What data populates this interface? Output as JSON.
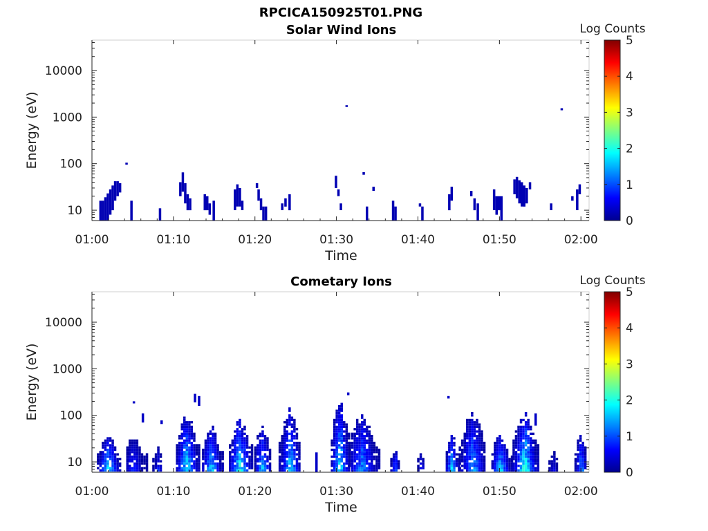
{
  "figure": {
    "title": "RPCICA150925T01.PNG"
  },
  "colormap": [
    "#00008f",
    "#0000ff",
    "#0080ff",
    "#00ffff",
    "#80ff80",
    "#ffff00",
    "#ff8000",
    "#ff0000",
    "#800000"
  ],
  "chart_data": [
    {
      "type": "heatmap",
      "title": "Solar Wind Ions",
      "xlabel": "Time",
      "ylabel": "Energy (eV)",
      "xlim": [
        "01:00",
        "02:01"
      ],
      "xticks": [
        "01:00",
        "01:10",
        "01:20",
        "01:30",
        "01:40",
        "01:50",
        "02:00"
      ],
      "ylim": [
        6,
        45000
      ],
      "yscale": "log",
      "yticks": [
        10,
        100,
        1000,
        10000
      ],
      "yticklabels": [
        "10",
        "100",
        "1000",
        "10000"
      ],
      "colorbar": {
        "label": "Log Counts",
        "range": [
          0,
          5
        ],
        "ticks": [
          "0",
          "1",
          "2",
          "3",
          "4",
          "5"
        ]
      },
      "cells": [
        {
          "t": 0.9,
          "e0": 6,
          "e1": 16,
          "v": 0.2
        },
        {
          "t": 1.2,
          "e0": 6,
          "e1": 16,
          "v": 0.2
        },
        {
          "t": 1.5,
          "e0": 6,
          "e1": 19,
          "v": 0.2
        },
        {
          "t": 1.8,
          "e0": 6,
          "e1": 23,
          "v": 0.2
        },
        {
          "t": 2.1,
          "e0": 8,
          "e1": 28,
          "v": 0.2
        },
        {
          "t": 2.4,
          "e0": 10,
          "e1": 34,
          "v": 0.2
        },
        {
          "t": 2.7,
          "e0": 16,
          "e1": 42,
          "v": 0.2
        },
        {
          "t": 3.0,
          "e0": 20,
          "e1": 42,
          "v": 0.2
        },
        {
          "t": 3.3,
          "e0": 24,
          "e1": 38,
          "v": 0.2
        },
        {
          "t": 4.7,
          "e0": 6,
          "e1": 16,
          "v": 0.2
        },
        {
          "t": 4.1,
          "e0": 95,
          "e1": 105,
          "v": 0.2
        },
        {
          "t": 8.2,
          "e0": 6,
          "e1": 11,
          "v": 0.2
        },
        {
          "t": 10.7,
          "e0": 20,
          "e1": 40,
          "v": 0.2
        },
        {
          "t": 11.0,
          "e0": 25,
          "e1": 65,
          "v": 0.2
        },
        {
          "t": 11.3,
          "e0": 14,
          "e1": 38,
          "v": 0.2
        },
        {
          "t": 11.6,
          "e0": 10,
          "e1": 22,
          "v": 0.2
        },
        {
          "t": 11.9,
          "e0": 10,
          "e1": 18,
          "v": 0.2
        },
        {
          "t": 13.7,
          "e0": 10,
          "e1": 22,
          "v": 0.2
        },
        {
          "t": 14.0,
          "e0": 10,
          "e1": 20,
          "v": 0.2
        },
        {
          "t": 14.3,
          "e0": 8,
          "e1": 14,
          "v": 0.2
        },
        {
          "t": 14.8,
          "e0": 6,
          "e1": 16,
          "v": 0.2
        },
        {
          "t": 17.4,
          "e0": 10,
          "e1": 28,
          "v": 0.2
        },
        {
          "t": 17.7,
          "e0": 12,
          "e1": 36,
          "v": 0.2
        },
        {
          "t": 18.0,
          "e0": 12,
          "e1": 30,
          "v": 0.2
        },
        {
          "t": 18.3,
          "e0": 10,
          "e1": 16,
          "v": 0.2
        },
        {
          "t": 20.1,
          "e0": 30,
          "e1": 38,
          "v": 0.2
        },
        {
          "t": 20.3,
          "e0": 16,
          "e1": 28,
          "v": 0.2
        },
        {
          "t": 20.6,
          "e0": 10,
          "e1": 18,
          "v": 0.2
        },
        {
          "t": 20.9,
          "e0": 6,
          "e1": 12,
          "v": 0.2
        },
        {
          "t": 21.2,
          "e0": 6,
          "e1": 12,
          "v": 0.2
        },
        {
          "t": 23.2,
          "e0": 10,
          "e1": 14,
          "v": 0.2
        },
        {
          "t": 23.6,
          "e0": 12,
          "e1": 18,
          "v": 0.2
        },
        {
          "t": 24.1,
          "e0": 10,
          "e1": 22,
          "v": 0.2
        },
        {
          "t": 29.8,
          "e0": 30,
          "e1": 55,
          "v": 0.2
        },
        {
          "t": 30.1,
          "e0": 20,
          "e1": 28,
          "v": 0.2
        },
        {
          "t": 30.4,
          "e0": 10,
          "e1": 14,
          "v": 0.2
        },
        {
          "t": 31.1,
          "e0": 1650,
          "e1": 1800,
          "v": 0.2
        },
        {
          "t": 33.2,
          "e0": 58,
          "e1": 66,
          "v": 0.2
        },
        {
          "t": 34.4,
          "e0": 26,
          "e1": 32,
          "v": 0.2
        },
        {
          "t": 33.6,
          "e0": 6,
          "e1": 12,
          "v": 0.2
        },
        {
          "t": 36.8,
          "e0": 6,
          "e1": 16,
          "v": 0.2
        },
        {
          "t": 37.1,
          "e0": 6,
          "e1": 12,
          "v": 0.2
        },
        {
          "t": 40.4,
          "e0": 6,
          "e1": 12,
          "v": 0.2
        },
        {
          "t": 40.1,
          "e0": 12,
          "e1": 14,
          "v": 0.2
        },
        {
          "t": 43.7,
          "e0": 10,
          "e1": 22,
          "v": 0.2
        },
        {
          "t": 44.0,
          "e0": 16,
          "e1": 32,
          "v": 0.2
        },
        {
          "t": 46.4,
          "e0": 20,
          "e1": 26,
          "v": 0.2
        },
        {
          "t": 46.8,
          "e0": 10,
          "e1": 18,
          "v": 0.2
        },
        {
          "t": 47.2,
          "e0": 6,
          "e1": 14,
          "v": 0.2
        },
        {
          "t": 49.2,
          "e0": 10,
          "e1": 28,
          "v": 0.2
        },
        {
          "t": 49.5,
          "e0": 8,
          "e1": 20,
          "v": 0.2
        },
        {
          "t": 49.8,
          "e0": 10,
          "e1": 20,
          "v": 0.2
        },
        {
          "t": 50.1,
          "e0": 6,
          "e1": 20,
          "v": 0.2
        },
        {
          "t": 51.7,
          "e0": 22,
          "e1": 46,
          "v": 0.2
        },
        {
          "t": 52.0,
          "e0": 18,
          "e1": 52,
          "v": 0.2
        },
        {
          "t": 52.3,
          "e0": 14,
          "e1": 44,
          "v": 0.2
        },
        {
          "t": 52.6,
          "e0": 12,
          "e1": 40,
          "v": 0.2
        },
        {
          "t": 52.9,
          "e0": 12,
          "e1": 34,
          "v": 0.2
        },
        {
          "t": 53.2,
          "e0": 14,
          "e1": 30,
          "v": 0.2
        },
        {
          "t": 53.6,
          "e0": 28,
          "e1": 40,
          "v": 0.2
        },
        {
          "t": 56.2,
          "e0": 10,
          "e1": 14,
          "v": 0.2
        },
        {
          "t": 57.5,
          "e0": 1400,
          "e1": 1550,
          "v": 0.2
        },
        {
          "t": 58.8,
          "e0": 16,
          "e1": 20,
          "v": 0.2
        },
        {
          "t": 59.4,
          "e0": 10,
          "e1": 28,
          "v": 0.2
        },
        {
          "t": 59.7,
          "e0": 22,
          "e1": 36,
          "v": 0.2
        }
      ]
    },
    {
      "type": "heatmap",
      "title": "Cometary Ions",
      "xlabel": "Time",
      "ylabel": "Energy (eV)",
      "xlim": [
        "01:00",
        "02:01"
      ],
      "xticks": [
        "01:00",
        "01:10",
        "01:20",
        "01:30",
        "01:40",
        "01:50",
        "02:00"
      ],
      "ylim": [
        6,
        45000
      ],
      "yscale": "log",
      "yticks": [
        10,
        100,
        1000,
        10000
      ],
      "yticklabels": [
        "10",
        "100",
        "1000",
        "10000"
      ],
      "colorbar": {
        "label": "Log Counts",
        "range": [
          0,
          5
        ],
        "ticks": [
          "0",
          "1",
          "2",
          "3",
          "4",
          "5"
        ]
      },
      "blobs": [
        {
          "t0": 0.6,
          "t1": 3.4,
          "peak": 1.9,
          "top": 45,
          "hi": 1.8
        },
        {
          "t0": 4.2,
          "t1": 6.6,
          "peak": 5.0,
          "top": 45,
          "hi": 0.9
        },
        {
          "t0": 7.4,
          "t1": 8.6,
          "peak": 8.0,
          "top": 22,
          "hi": 0.8
        },
        {
          "t0": 10.3,
          "t1": 13.2,
          "peak": 11.5,
          "top": 110,
          "hi": 1.9
        },
        {
          "t0": 13.5,
          "t1": 16.0,
          "peak": 14.5,
          "top": 75,
          "hi": 1.8
        },
        {
          "t0": 16.8,
          "t1": 19.8,
          "peak": 18.0,
          "top": 90,
          "hi": 2.0
        },
        {
          "t0": 19.9,
          "t1": 22.0,
          "peak": 20.8,
          "top": 80,
          "hi": 1.6
        },
        {
          "t0": 22.9,
          "t1": 25.5,
          "peak": 24.2,
          "top": 170,
          "hi": 1.7
        },
        {
          "t0": 29.3,
          "t1": 31.5,
          "peak": 30.3,
          "top": 220,
          "hi": 2.0
        },
        {
          "t0": 31.5,
          "t1": 35.2,
          "peak": 33.0,
          "top": 110,
          "hi": 1.4
        },
        {
          "t0": 36.6,
          "t1": 37.6,
          "peak": 37.1,
          "top": 18,
          "hi": 1.5
        },
        {
          "t0": 39.9,
          "t1": 40.7,
          "peak": 40.3,
          "top": 18,
          "hi": 1.0
        },
        {
          "t0": 43.4,
          "t1": 45.0,
          "peak": 44.0,
          "top": 45,
          "hi": 1.9
        },
        {
          "t0": 45.0,
          "t1": 48.2,
          "peak": 46.6,
          "top": 130,
          "hi": 1.5
        },
        {
          "t0": 49.0,
          "t1": 51.4,
          "peak": 50.0,
          "top": 45,
          "hi": 1.8
        },
        {
          "t0": 51.6,
          "t1": 54.6,
          "peak": 53.0,
          "top": 140,
          "hi": 2.2
        },
        {
          "t0": 56.0,
          "t1": 57.0,
          "peak": 56.5,
          "top": 18,
          "hi": 0.6
        },
        {
          "t0": 59.2,
          "t1": 60.6,
          "peak": 59.9,
          "top": 60,
          "hi": 1.5
        }
      ],
      "cells": [
        {
          "t": 5.0,
          "e0": 180,
          "e1": 200,
          "v": 0.3
        },
        {
          "t": 6.1,
          "e0": 70,
          "e1": 110,
          "v": 0.3
        },
        {
          "t": 8.4,
          "e0": 65,
          "e1": 78,
          "v": 0.3
        },
        {
          "t": 12.5,
          "e0": 190,
          "e1": 290,
          "v": 0.3
        },
        {
          "t": 13.0,
          "e0": 160,
          "e1": 260,
          "v": 0.3
        },
        {
          "t": 27.4,
          "e0": 6,
          "e1": 16,
          "v": 0.3
        },
        {
          "t": 31.3,
          "e0": 270,
          "e1": 310,
          "v": 0.3
        },
        {
          "t": 43.6,
          "e0": 230,
          "e1": 260,
          "v": 0.3
        },
        {
          "t": 54.3,
          "e0": 60,
          "e1": 110,
          "v": 0.3
        }
      ]
    }
  ]
}
